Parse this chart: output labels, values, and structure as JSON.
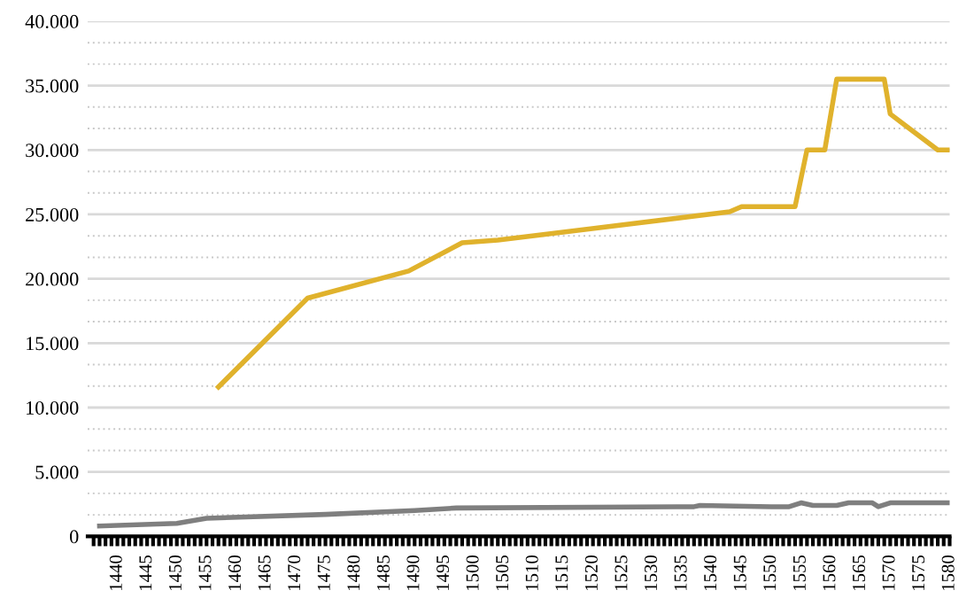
{
  "chart_data": {
    "type": "line",
    "series": [
      {
        "color": "#e0b22c",
        "x": [
          1457,
          1472,
          1489,
          1498,
          1504,
          1543,
          1545,
          1554,
          1556,
          1559,
          1561,
          1569,
          1570,
          1578,
          1580
        ],
        "values": [
          11600,
          18500,
          20600,
          22800,
          23000,
          25200,
          25600,
          25600,
          30000,
          30000,
          35500,
          35500,
          32800,
          30000,
          30000
        ]
      },
      {
        "color": "#7f7f7f",
        "x": [
          1437,
          1450,
          1455,
          1475,
          1490,
          1497,
          1537,
          1538,
          1550,
          1553,
          1555,
          1557,
          1561,
          1563,
          1567,
          1568,
          1570,
          1580
        ],
        "values": [
          800,
          1000,
          1400,
          1700,
          2000,
          2200,
          2300,
          2400,
          2300,
          2300,
          2600,
          2400,
          2400,
          2600,
          2600,
          2300,
          2600,
          2600
        ]
      }
    ],
    "xlim": [
      1435,
      1580
    ],
    "xticks": [
      1440,
      1445,
      1450,
      1455,
      1460,
      1465,
      1470,
      1475,
      1480,
      1485,
      1490,
      1495,
      1500,
      1505,
      1510,
      1515,
      1520,
      1525,
      1530,
      1535,
      1540,
      1545,
      1550,
      1555,
      1560,
      1565,
      1570,
      1575,
      1580,
      {
        "value": 1436,
        "label": null
      },
      {
        "value": 1437,
        "label": null
      },
      {
        "value": 1438,
        "label": null
      },
      {
        "value": 1439,
        "label": null
      },
      {
        "value": 1441,
        "label": null
      },
      {
        "value": 1442,
        "label": null
      },
      {
        "value": 1443,
        "label": null
      },
      {
        "value": 1444,
        "label": null
      },
      {
        "value": 1446,
        "label": null
      },
      {
        "value": 1447,
        "label": null
      },
      {
        "value": 1448,
        "label": null
      },
      {
        "value": 1449,
        "label": null
      },
      {
        "value": 1451,
        "label": null
      },
      {
        "value": 1452,
        "label": null
      },
      {
        "value": 1453,
        "label": null
      },
      {
        "value": 1454,
        "label": null
      },
      {
        "value": 1456,
        "label": null
      },
      {
        "value": 1457,
        "label": null
      },
      {
        "value": 1458,
        "label": null
      },
      {
        "value": 1459,
        "label": null
      },
      {
        "value": 1461,
        "label": null
      },
      {
        "value": 1462,
        "label": null
      },
      {
        "value": 1463,
        "label": null
      },
      {
        "value": 1464,
        "label": null
      },
      {
        "value": 1466,
        "label": null
      },
      {
        "value": 1467,
        "label": null
      },
      {
        "value": 1468,
        "label": null
      },
      {
        "value": 1469,
        "label": null
      },
      {
        "value": 1471,
        "label": null
      },
      {
        "value": 1472,
        "label": null
      },
      {
        "value": 1473,
        "label": null
      },
      {
        "value": 1474,
        "label": null
      },
      {
        "value": 1476,
        "label": null
      },
      {
        "value": 1477,
        "label": null
      },
      {
        "value": 1478,
        "label": null
      },
      {
        "value": 1479,
        "label": null
      },
      {
        "value": 1481,
        "label": null
      },
      {
        "value": 1482,
        "label": null
      },
      {
        "value": 1483,
        "label": null
      },
      {
        "value": 1484,
        "label": null
      },
      {
        "value": 1486,
        "label": null
      },
      {
        "value": 1487,
        "label": null
      },
      {
        "value": 1488,
        "label": null
      },
      {
        "value": 1489,
        "label": null
      },
      {
        "value": 1491,
        "label": null
      },
      {
        "value": 1492,
        "label": null
      },
      {
        "value": 1493,
        "label": null
      },
      {
        "value": 1494,
        "label": null
      },
      {
        "value": 1496,
        "label": null
      },
      {
        "value": 1497,
        "label": null
      },
      {
        "value": 1498,
        "label": null
      },
      {
        "value": 1499,
        "label": null
      },
      {
        "value": 1501,
        "label": null
      },
      {
        "value": 1502,
        "label": null
      },
      {
        "value": 1503,
        "label": null
      },
      {
        "value": 1504,
        "label": null
      },
      {
        "value": 1506,
        "label": null
      },
      {
        "value": 1507,
        "label": null
      },
      {
        "value": 1508,
        "label": null
      },
      {
        "value": 1509,
        "label": null
      },
      {
        "value": 1511,
        "label": null
      },
      {
        "value": 1512,
        "label": null
      },
      {
        "value": 1513,
        "label": null
      },
      {
        "value": 1514,
        "label": null
      },
      {
        "value": 1516,
        "label": null
      },
      {
        "value": 1517,
        "label": null
      },
      {
        "value": 1518,
        "label": null
      },
      {
        "value": 1519,
        "label": null
      },
      {
        "value": 1521,
        "label": null
      },
      {
        "value": 1522,
        "label": null
      },
      {
        "value": 1523,
        "label": null
      },
      {
        "value": 1524,
        "label": null
      },
      {
        "value": 1526,
        "label": null
      },
      {
        "value": 1527,
        "label": null
      },
      {
        "value": 1528,
        "label": null
      },
      {
        "value": 1529,
        "label": null
      },
      {
        "value": 1531,
        "label": null
      },
      {
        "value": 1532,
        "label": null
      },
      {
        "value": 1533,
        "label": null
      },
      {
        "value": 1534,
        "label": null
      },
      {
        "value": 1536,
        "label": null
      },
      {
        "value": 1537,
        "label": null
      },
      {
        "value": 1538,
        "label": null
      },
      {
        "value": 1539,
        "label": null
      },
      {
        "value": 1541,
        "label": null
      },
      {
        "value": 1542,
        "label": null
      },
      {
        "value": 1543,
        "label": null
      },
      {
        "value": 1544,
        "label": null
      },
      {
        "value": 1546,
        "label": null
      },
      {
        "value": 1547,
        "label": null
      },
      {
        "value": 1548,
        "label": null
      },
      {
        "value": 1549,
        "label": null
      },
      {
        "value": 1551,
        "label": null
      },
      {
        "value": 1552,
        "label": null
      },
      {
        "value": 1553,
        "label": null
      },
      {
        "value": 1554,
        "label": null
      },
      {
        "value": 1556,
        "label": null
      },
      {
        "value": 1557,
        "label": null
      },
      {
        "value": 1558,
        "label": null
      },
      {
        "value": 1559,
        "label": null
      },
      {
        "value": 1561,
        "label": null
      },
      {
        "value": 1562,
        "label": null
      },
      {
        "value": 1563,
        "label": null
      },
      {
        "value": 1564,
        "label": null
      },
      {
        "value": 1566,
        "label": null
      },
      {
        "value": 1567,
        "label": null
      },
      {
        "value": 1568,
        "label": null
      },
      {
        "value": 1569,
        "label": null
      },
      {
        "value": 1571,
        "label": null
      },
      {
        "value": 1572,
        "label": null
      },
      {
        "value": 1573,
        "label": null
      },
      {
        "value": 1574,
        "label": null
      },
      {
        "value": 1576,
        "label": null
      },
      {
        "value": 1577,
        "label": null
      },
      {
        "value": 1578,
        "label": null
      },
      {
        "value": 1579,
        "label": null
      }
    ],
    "ylim": [
      0,
      40000
    ],
    "yticks": [
      {
        "value": 0,
        "label": "0"
      },
      {
        "value": 1667,
        "label": null
      },
      {
        "value": 3333,
        "label": null
      },
      {
        "value": 5000,
        "label": "5.000"
      },
      {
        "value": 6667,
        "label": null
      },
      {
        "value": 8333,
        "label": null
      },
      {
        "value": 10000,
        "label": "10.000"
      },
      {
        "value": 11667,
        "label": null
      },
      {
        "value": 13333,
        "label": null
      },
      {
        "value": 15000,
        "label": "15.000"
      },
      {
        "value": 16667,
        "label": null
      },
      {
        "value": 18333,
        "label": null
      },
      {
        "value": 20000,
        "label": "20.000"
      },
      {
        "value": 21667,
        "label": null
      },
      {
        "value": 23333,
        "label": null
      },
      {
        "value": 25000,
        "label": "25.000"
      },
      {
        "value": 26667,
        "label": null
      },
      {
        "value": 28333,
        "label": null
      },
      {
        "value": 30000,
        "label": "30.000"
      },
      {
        "value": 31667,
        "label": null
      },
      {
        "value": 33333,
        "label": null
      },
      {
        "value": 35000,
        "label": "35.000"
      },
      {
        "value": 36667,
        "label": null
      },
      {
        "value": 38333,
        "label": null
      },
      {
        "value": 40000,
        "label": "40.000"
      }
    ],
    "grid": "y",
    "legend": false,
    "marker": "none",
    "line_style": "solid"
  }
}
